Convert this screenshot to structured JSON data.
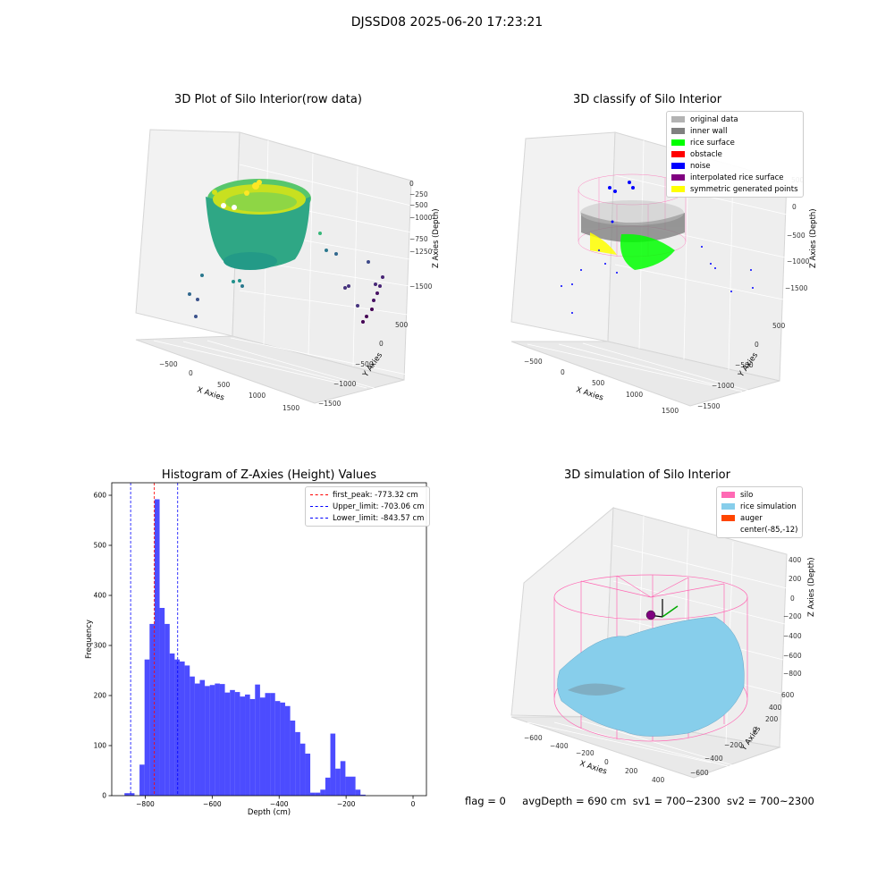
{
  "figure": {
    "title": "DJSSD08 2025-06-20 17:23:21"
  },
  "panels": {
    "raw": {
      "title": "3D Plot of Silo Interior(row data)",
      "xlabel": "X Axies",
      "ylabel": "Y Axies",
      "zlabel": "Z Axies (Depth)",
      "xticks": [
        "−500",
        "0",
        "500",
        "1000",
        "1500"
      ],
      "yticks": [
        "−1500",
        "−1000",
        "−500",
        "0",
        "500"
      ],
      "zticks": [
        "−1500",
        "−1250",
        "−1000",
        "−750",
        "−500",
        "−250",
        "0"
      ]
    },
    "classify": {
      "title": "3D classify of Silo Interior",
      "xlabel": "X Axies",
      "ylabel": "Y Axies",
      "zlabel": "Z Axies (Depth)",
      "xticks": [
        "−500",
        "0",
        "500",
        "1000",
        "1500"
      ],
      "yticks": [
        "−1500",
        "−1000",
        "−500",
        "0",
        "500"
      ],
      "zticks": [
        "−1500",
        "−1000",
        "−500",
        "0",
        "500"
      ],
      "legend": [
        {
          "label": "original data",
          "color": "#b3b3b3"
        },
        {
          "label": "inner wall",
          "color": "#808080"
        },
        {
          "label": "rice surface",
          "color": "#00ff00"
        },
        {
          "label": "obstacle",
          "color": "#ff0000"
        },
        {
          "label": "noise",
          "color": "#0000ff"
        },
        {
          "label": "interpolated rice surface",
          "color": "#800080"
        },
        {
          "label": "symmetric generated points",
          "color": "#ffff00"
        }
      ]
    },
    "simulation": {
      "title": "3D simulation of Silo Interior",
      "xlabel": "X Axies",
      "ylabel": "Y Axies",
      "zlabel": "Z Axies (Depth)",
      "xticks": [
        "−600",
        "−400",
        "−200",
        "0",
        "200",
        "400"
      ],
      "yticks": [
        "−600",
        "−400",
        "−200",
        "0",
        "200",
        "400",
        "600"
      ],
      "zticks": [
        "−800",
        "−600",
        "−400",
        "−200",
        "0",
        "200",
        "400"
      ],
      "legend": [
        {
          "label": "silo",
          "color": "#ff69b4"
        },
        {
          "label": "rice simulation",
          "color": "#87ceeb"
        },
        {
          "label": "auger",
          "color": "#ff4500"
        },
        {
          "label": "center(-85,-12)",
          "color": ""
        }
      ]
    }
  },
  "footer": {
    "flag": "flag = 0",
    "avg": "avgDepth = 690 cm",
    "sv1": "sv1 = 700~2300",
    "sv2": "sv2 = 700~2300"
  },
  "chart_data": [
    {
      "type": "bar",
      "title": "Histogram of Z-Axies (Height) Values",
      "xlabel": "Depth (cm)",
      "ylabel": "Frequency",
      "xlim": [
        -900,
        40
      ],
      "ylim": [
        0,
        625
      ],
      "xticks": [
        -800,
        -600,
        -400,
        -200,
        0
      ],
      "yticks": [
        0,
        100,
        200,
        300,
        400,
        500,
        600
      ],
      "bin_width": 15,
      "bin_start": -862,
      "values": [
        5,
        5,
        0,
        62,
        272,
        343,
        592,
        375,
        343,
        284,
        272,
        268,
        260,
        238,
        224,
        231,
        219,
        221,
        224,
        223,
        206,
        211,
        207,
        198,
        202,
        193,
        222,
        196,
        205,
        205,
        189,
        186,
        179,
        150,
        127,
        104,
        84,
        6,
        6,
        12,
        36,
        124,
        54,
        69,
        38,
        38,
        12,
        2
      ],
      "color": "#0000ff",
      "reference_lines": [
        {
          "label": "first_peak: -773.32 cm",
          "value": -773.32,
          "color": "#ff0000"
        },
        {
          "label": "Upper_limit: -703.06 cm",
          "value": -703.06,
          "color": "#0000ff"
        },
        {
          "label": "Lower_limit: -843.57 cm",
          "value": -843.57,
          "color": "#0000ff"
        }
      ],
      "legend_position": "top-right"
    }
  ]
}
